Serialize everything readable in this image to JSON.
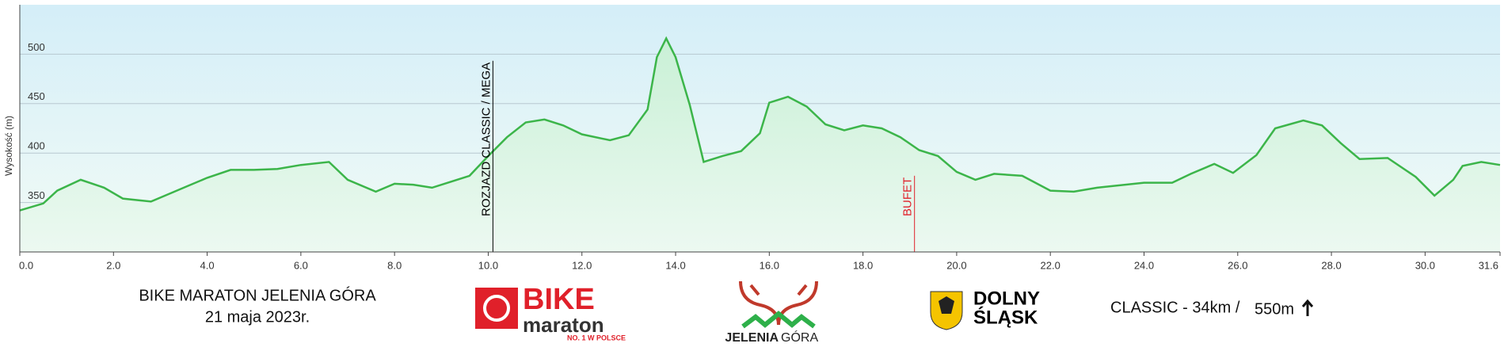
{
  "chart_data": {
    "type": "area",
    "y_label": "Wysokość (m)",
    "color": "#3cb54a",
    "x": [
      0,
      0.5,
      0.8,
      1.3,
      1.8,
      2.2,
      2.8,
      3.2,
      3.6,
      4.0,
      4.5,
      5.0,
      5.5,
      6.0,
      6.6,
      7.0,
      7.6,
      8.0,
      8.4,
      8.8,
      9.2,
      9.6,
      10.0,
      10.4,
      10.8,
      11.2,
      11.6,
      12.0,
      12.6,
      13.0,
      13.4,
      13.6,
      13.8,
      14.0,
      14.3,
      14.6,
      15.0,
      15.4,
      15.8,
      16.0,
      16.4,
      16.8,
      17.2,
      17.6,
      18.0,
      18.4,
      18.8,
      19.2,
      19.6,
      20.0,
      20.4,
      20.8,
      21.4,
      22.0,
      22.5,
      23.0,
      24.0,
      24.6,
      25.0,
      25.5,
      25.9,
      26.4,
      26.8,
      27.4,
      27.8,
      28.2,
      28.6,
      29.2,
      29.8,
      30.2,
      30.6,
      30.8,
      31.2,
      31.6
    ],
    "values": [
      342,
      349,
      362,
      373,
      365,
      354,
      351,
      359,
      367,
      375,
      383,
      383,
      384,
      388,
      391,
      373,
      361,
      369,
      368,
      365,
      371,
      377,
      397,
      416,
      431,
      434,
      428,
      419,
      413,
      418,
      444,
      497,
      516,
      497,
      449,
      391,
      397,
      402,
      420,
      451,
      457,
      447,
      429,
      423,
      428,
      425,
      416,
      403,
      397,
      381,
      373,
      379,
      377,
      362,
      361,
      365,
      370,
      370,
      379,
      389,
      380,
      398,
      425,
      433,
      428,
      410,
      394,
      395,
      376,
      357,
      373,
      387,
      391,
      388
    ],
    "xlim": [
      0,
      31.6
    ],
    "ylim": [
      300,
      550
    ],
    "xticks": [
      {
        "value": 0,
        "label": "0.0"
      },
      {
        "value": 2,
        "label": "2.0"
      },
      {
        "value": 4,
        "label": "4.0"
      },
      {
        "value": 6,
        "label": "6.0"
      },
      {
        "value": 8,
        "label": "8.0"
      },
      {
        "value": 10,
        "label": "10.0"
      },
      {
        "value": 12,
        "label": "12.0"
      },
      {
        "value": 14,
        "label": "14.0"
      },
      {
        "value": 16,
        "label": "16.0"
      },
      {
        "value": 18,
        "label": "18.0"
      },
      {
        "value": 20,
        "label": "20.0"
      },
      {
        "value": 22,
        "label": "22.0"
      },
      {
        "value": 24,
        "label": "24.0"
      },
      {
        "value": 26,
        "label": "26.0"
      },
      {
        "value": 28,
        "label": "28.0"
      },
      {
        "value": 30,
        "label": "30.0"
      },
      31.6
    ],
    "yticks": [
      350,
      400,
      450,
      500
    ],
    "grid": true,
    "annotations": [
      {
        "x": 10.1,
        "label": "ROZJAZD CLASSIC / MEGA",
        "color": "#000000"
      },
      {
        "x": 19.1,
        "label": "BUFET",
        "color": "#e0202a"
      }
    ]
  },
  "footer": {
    "title": "BIKE MARATON JELENIA GÓRA",
    "date": "21 maja 2023r.",
    "bike_logo": [
      "BIKE",
      "maraton",
      "NO. 1 W POLSCE"
    ],
    "city_logo": [
      "JELENIA",
      "GÓRA"
    ],
    "region_logo": [
      "DOLNY",
      "ŚLĄSK"
    ],
    "route": "CLASSIC - 34km /",
    "climb": "550m"
  }
}
